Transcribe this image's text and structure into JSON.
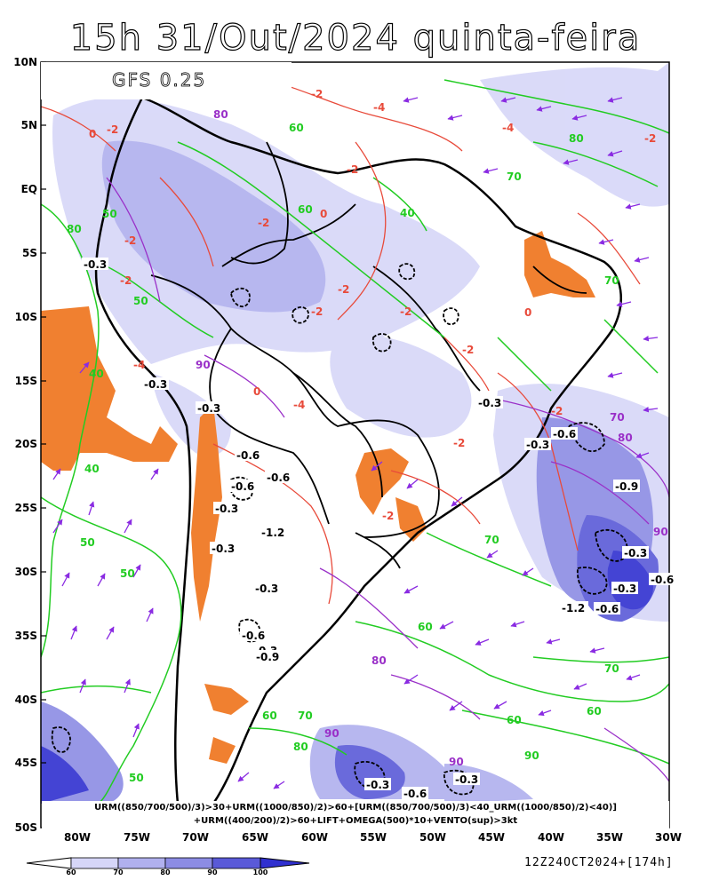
{
  "title": "15h 31/Out/2024 quinta-feira",
  "model": "GFS 0.25",
  "lat_labels": [
    "10N",
    "5N",
    "EQ",
    "5S",
    "10S",
    "15S",
    "20S",
    "25S",
    "30S",
    "35S",
    "40S",
    "45S",
    "50S"
  ],
  "lon_labels": [
    "80W",
    "75W",
    "70W",
    "65W",
    "60W",
    "55W",
    "50W",
    "45W",
    "40W",
    "35W",
    "30W"
  ],
  "legend": {
    "line1": "URM((850/700/500)/3)>30+URM((1000/850)/2)>60+[URM((850/700/500)/3)<40_URM((1000/850)/2)<40)]",
    "line2": "+URM((400/200)/2)>60+LIFT+OMEGA(500)*10+VENTO(sup)>3kt"
  },
  "colorbar": {
    "ticks": [
      "60",
      "70",
      "80",
      "90",
      "100"
    ],
    "colors": [
      "#d6d6f8",
      "#b0b0ee",
      "#8c8ce4",
      "#5a5ad8",
      "#3030d0"
    ]
  },
  "run_info": "12Z24OCT2024+[174h]",
  "contour_labels": {
    "lift": [
      "-2",
      "-4",
      "0",
      "-2",
      "-2",
      "-4",
      "0",
      "-2",
      "-2",
      "-2",
      "-4",
      "0",
      "-2",
      "-2",
      "-2",
      "-2",
      "-4",
      "-2",
      "-2",
      "-2",
      "0",
      "-2"
    ],
    "urm": [
      "80",
      "60",
      "50",
      "40",
      "50",
      "70",
      "80",
      "60",
      "70",
      "40",
      "80",
      "50",
      "60",
      "70",
      "60",
      "50",
      "60",
      "40",
      "50",
      "70",
      "80",
      "90",
      "60",
      "70"
    ],
    "omega": [
      "-0.3",
      "-0.3",
      "-0.6",
      "-0.3",
      "-0.6",
      "-0.9",
      "-0.3",
      "-0.6",
      "-0.3",
      "-1.2",
      "-0.3",
      "-0.6",
      "-0.3",
      "-0.6",
      "-0.3",
      "-0.3",
      "-0.6",
      "-0.3",
      "-0.9",
      "-0.3",
      "-0.6",
      "-0.3",
      "-0.3",
      "-1.2",
      "-0.6"
    ],
    "hum": [
      "90",
      "80",
      "90",
      "80",
      "90",
      "70",
      "90"
    ]
  }
}
